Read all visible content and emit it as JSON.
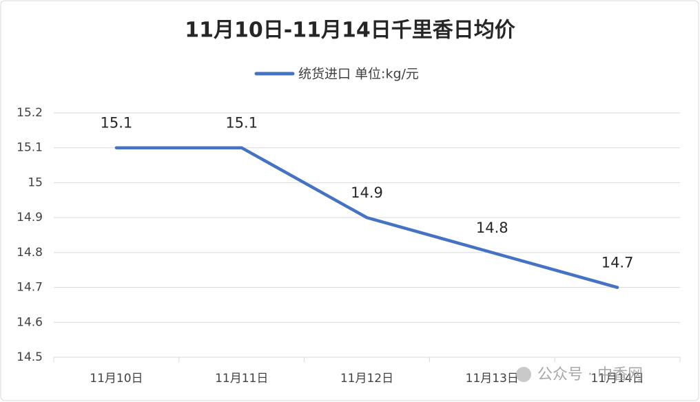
{
  "chart_data": {
    "type": "line",
    "title": "11月10日-11月14日千里香日均价",
    "categories": [
      "11月10日",
      "11月11日",
      "11月12日",
      "11月13日",
      "11月14日"
    ],
    "series": [
      {
        "name": "统货进口 单位:kg/元",
        "color": "#4472c4",
        "values": [
          15.1,
          15.1,
          14.9,
          14.8,
          14.7
        ]
      }
    ],
    "ylim": [
      14.5,
      15.2
    ],
    "yticks": [
      14.5,
      14.6,
      14.7,
      14.8,
      14.9,
      15,
      15.1,
      15.2
    ],
    "grid": true,
    "legend": "top",
    "watermark": "公众号 · 中香网"
  }
}
